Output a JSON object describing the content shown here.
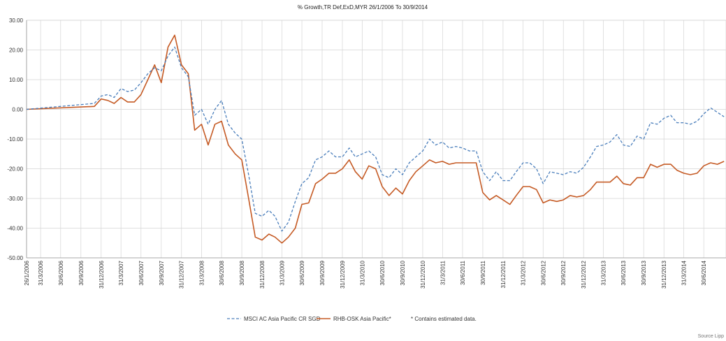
{
  "chart_data": {
    "type": "line",
    "title": "% Growth,TR Def,ExD,MYR 26/1/2006 To 30/9/2014",
    "xlabel": "",
    "ylabel": "",
    "ylim": [
      -50,
      30
    ],
    "yticks": [
      30,
      20,
      10,
      0,
      -10,
      -20,
      -30,
      -40,
      -50
    ],
    "ytick_labels": [
      "30.00",
      "20.00",
      "10.00",
      "0.00",
      "-10.00",
      "-20.00",
      "-30.00",
      "-40.00",
      "-50.00"
    ],
    "xlim": [
      "2006-01-26",
      "2014-09-30"
    ],
    "xticks": [
      "2006-01-26",
      "2006-03-31",
      "2006-06-30",
      "2006-09-30",
      "2006-12-31",
      "2007-03-31",
      "2007-06-30",
      "2007-09-30",
      "2007-12-31",
      "2008-03-31",
      "2008-06-30",
      "2008-09-30",
      "2008-12-31",
      "2009-03-31",
      "2009-06-30",
      "2009-09-30",
      "2009-12-31",
      "2010-03-31",
      "2010-06-30",
      "2010-09-30",
      "2010-12-31",
      "2011-03-31",
      "2011-06-30",
      "2011-09-30",
      "2011-12-31",
      "2012-03-31",
      "2012-06-30",
      "2012-09-30",
      "2012-12-31",
      "2013-03-31",
      "2013-06-30",
      "2013-09-30",
      "2013-12-31",
      "2014-03-31",
      "2014-06-30"
    ],
    "xtick_labels": [
      "26/1/2006",
      "31/3/2006",
      "30/6/2006",
      "30/9/2006",
      "31/12/2006",
      "31/3/2007",
      "30/6/2007",
      "30/9/2007",
      "31/12/2007",
      "31/3/2008",
      "30/6/2008",
      "30/9/2008",
      "31/12/2008",
      "31/3/2009",
      "30/6/2009",
      "30/9/2009",
      "31/12/2009",
      "31/3/2010",
      "30/6/2010",
      "30/9/2010",
      "31/12/2010",
      "31/3/2011",
      "30/6/2011",
      "30/9/2011",
      "31/12/2011",
      "31/3/2012",
      "30/6/2012",
      "30/9/2012",
      "31/12/2012",
      "31/3/2013",
      "30/6/2013",
      "30/9/2013",
      "31/12/2013",
      "31/3/2014",
      "30/6/2014"
    ],
    "grid": true,
    "legend_position": "bottom-center",
    "series": [
      {
        "name": "MSCI AC Asia Pacific CR SGD",
        "color": "#4a7ebb",
        "dash": true,
        "points": [
          [
            "2006-01-26",
            0
          ],
          [
            "2006-11-30",
            2
          ],
          [
            "2006-12-31",
            4.5
          ],
          [
            "2007-01-31",
            5
          ],
          [
            "2007-02-28",
            4
          ],
          [
            "2007-03-31",
            7
          ],
          [
            "2007-04-30",
            6
          ],
          [
            "2007-05-31",
            6.5
          ],
          [
            "2007-06-30",
            9
          ],
          [
            "2007-07-31",
            12
          ],
          [
            "2007-08-31",
            14
          ],
          [
            "2007-09-30",
            13
          ],
          [
            "2007-10-31",
            18
          ],
          [
            "2007-11-30",
            21
          ],
          [
            "2007-12-31",
            14
          ],
          [
            "2008-01-31",
            11
          ],
          [
            "2008-02-29",
            -2
          ],
          [
            "2008-03-31",
            0
          ],
          [
            "2008-04-30",
            -5
          ],
          [
            "2008-05-31",
            0
          ],
          [
            "2008-06-30",
            3
          ],
          [
            "2008-07-31",
            -5
          ],
          [
            "2008-08-31",
            -8
          ],
          [
            "2008-09-30",
            -10
          ],
          [
            "2008-10-31",
            -22
          ],
          [
            "2008-11-30",
            -35
          ],
          [
            "2008-12-31",
            -36
          ],
          [
            "2009-01-31",
            -34
          ],
          [
            "2009-02-28",
            -36
          ],
          [
            "2009-03-31",
            -41
          ],
          [
            "2009-04-30",
            -38
          ],
          [
            "2009-05-31",
            -31
          ],
          [
            "2009-06-30",
            -25
          ],
          [
            "2009-07-31",
            -23
          ],
          [
            "2009-08-31",
            -17
          ],
          [
            "2009-09-30",
            -16
          ],
          [
            "2009-10-31",
            -14
          ],
          [
            "2009-11-30",
            -16
          ],
          [
            "2009-12-31",
            -16
          ],
          [
            "2010-01-31",
            -13
          ],
          [
            "2010-02-28",
            -16
          ],
          [
            "2010-03-31",
            -15
          ],
          [
            "2010-04-30",
            -14
          ],
          [
            "2010-05-31",
            -16
          ],
          [
            "2010-06-30",
            -22
          ],
          [
            "2010-07-31",
            -23
          ],
          [
            "2010-08-31",
            -20
          ],
          [
            "2010-09-30",
            -22
          ],
          [
            "2010-10-31",
            -18
          ],
          [
            "2010-11-30",
            -16
          ],
          [
            "2010-12-31",
            -14
          ],
          [
            "2011-01-31",
            -10
          ],
          [
            "2011-02-28",
            -12
          ],
          [
            "2011-03-31",
            -11
          ],
          [
            "2011-04-30",
            -13
          ],
          [
            "2011-05-31",
            -12.5
          ],
          [
            "2011-06-30",
            -13
          ],
          [
            "2011-07-31",
            -14
          ],
          [
            "2011-08-31",
            -14
          ],
          [
            "2011-09-30",
            -21
          ],
          [
            "2011-10-31",
            -24
          ],
          [
            "2011-11-30",
            -21
          ],
          [
            "2011-12-31",
            -24
          ],
          [
            "2012-01-31",
            -24
          ],
          [
            "2012-02-29",
            -21
          ],
          [
            "2012-03-31",
            -18
          ],
          [
            "2012-04-30",
            -18
          ],
          [
            "2012-05-31",
            -20
          ],
          [
            "2012-06-30",
            -25
          ],
          [
            "2012-07-31",
            -21
          ],
          [
            "2012-08-31",
            -21.5
          ],
          [
            "2012-09-30",
            -22
          ],
          [
            "2012-10-31",
            -21
          ],
          [
            "2012-11-30",
            -21.5
          ],
          [
            "2012-12-31",
            -19.5
          ],
          [
            "2013-01-31",
            -16
          ],
          [
            "2013-02-28",
            -12.5
          ],
          [
            "2013-03-31",
            -12
          ],
          [
            "2013-04-30",
            -11
          ],
          [
            "2013-05-31",
            -8.5
          ],
          [
            "2013-06-30",
            -12
          ],
          [
            "2013-07-31",
            -12.5
          ],
          [
            "2013-08-31",
            -9
          ],
          [
            "2013-09-30",
            -10
          ],
          [
            "2013-10-31",
            -4.5
          ],
          [
            "2013-11-30",
            -5
          ],
          [
            "2013-12-31",
            -3
          ],
          [
            "2014-01-31",
            -2
          ],
          [
            "2014-02-28",
            -4.5
          ],
          [
            "2014-03-31",
            -4.5
          ],
          [
            "2014-04-30",
            -5
          ],
          [
            "2014-05-31",
            -4
          ],
          [
            "2014-06-30",
            -1.5
          ],
          [
            "2014-07-31",
            0.5
          ],
          [
            "2014-08-31",
            -1
          ],
          [
            "2014-09-30",
            -2.5
          ]
        ]
      },
      {
        "name": "RHB-OSK Asia Pacific*",
        "color": "#c55a24",
        "dash": false,
        "points": [
          [
            "2006-01-26",
            0
          ],
          [
            "2006-11-30",
            1
          ],
          [
            "2006-12-31",
            3.5
          ],
          [
            "2007-01-31",
            3
          ],
          [
            "2007-02-28",
            2
          ],
          [
            "2007-03-31",
            4
          ],
          [
            "2007-04-30",
            2.5
          ],
          [
            "2007-05-31",
            2.5
          ],
          [
            "2007-06-30",
            5
          ],
          [
            "2007-07-31",
            10
          ],
          [
            "2007-08-31",
            15
          ],
          [
            "2007-09-30",
            9
          ],
          [
            "2007-10-31",
            21
          ],
          [
            "2007-11-30",
            25
          ],
          [
            "2007-12-31",
            15
          ],
          [
            "2008-01-31",
            12
          ],
          [
            "2008-02-29",
            -7
          ],
          [
            "2008-03-31",
            -5
          ],
          [
            "2008-04-30",
            -12
          ],
          [
            "2008-05-31",
            -5
          ],
          [
            "2008-06-30",
            -4
          ],
          [
            "2008-07-31",
            -12
          ],
          [
            "2008-08-31",
            -15
          ],
          [
            "2008-09-30",
            -17
          ],
          [
            "2008-10-31",
            -30
          ],
          [
            "2008-11-30",
            -43
          ],
          [
            "2008-12-31",
            -44
          ],
          [
            "2009-01-31",
            -42
          ],
          [
            "2009-02-28",
            -43
          ],
          [
            "2009-03-31",
            -45
          ],
          [
            "2009-04-30",
            -43
          ],
          [
            "2009-05-31",
            -40
          ],
          [
            "2009-06-30",
            -32
          ],
          [
            "2009-07-31",
            -31.5
          ],
          [
            "2009-08-31",
            -25
          ],
          [
            "2009-09-30",
            -23.5
          ],
          [
            "2009-10-31",
            -21.5
          ],
          [
            "2009-11-30",
            -21.5
          ],
          [
            "2009-12-31",
            -20
          ],
          [
            "2010-01-31",
            -17
          ],
          [
            "2010-02-28",
            -21
          ],
          [
            "2010-03-31",
            -23.5
          ],
          [
            "2010-04-30",
            -19
          ],
          [
            "2010-05-31",
            -20
          ],
          [
            "2010-06-30",
            -26
          ],
          [
            "2010-07-31",
            -29
          ],
          [
            "2010-08-31",
            -26.5
          ],
          [
            "2010-09-30",
            -28.5
          ],
          [
            "2010-10-31",
            -24
          ],
          [
            "2010-11-30",
            -21
          ],
          [
            "2010-12-31",
            -19
          ],
          [
            "2011-01-31",
            -17
          ],
          [
            "2011-02-28",
            -18
          ],
          [
            "2011-03-31",
            -17.5
          ],
          [
            "2011-04-30",
            -18.5
          ],
          [
            "2011-05-31",
            -18
          ],
          [
            "2011-06-30",
            -18
          ],
          [
            "2011-07-31",
            -18
          ],
          [
            "2011-08-31",
            -18
          ],
          [
            "2011-09-30",
            -28
          ],
          [
            "2011-10-31",
            -30.5
          ],
          [
            "2011-11-30",
            -29
          ],
          [
            "2011-12-31",
            -30.5
          ],
          [
            "2012-01-31",
            -32
          ],
          [
            "2012-02-29",
            -29
          ],
          [
            "2012-03-31",
            -26
          ],
          [
            "2012-04-30",
            -26
          ],
          [
            "2012-05-31",
            -27
          ],
          [
            "2012-06-30",
            -31.5
          ],
          [
            "2012-07-31",
            -30.5
          ],
          [
            "2012-08-31",
            -31
          ],
          [
            "2012-09-30",
            -30.5
          ],
          [
            "2012-10-31",
            -29
          ],
          [
            "2012-11-30",
            -29.5
          ],
          [
            "2012-12-31",
            -29
          ],
          [
            "2013-01-31",
            -27
          ],
          [
            "2013-02-28",
            -24.5
          ],
          [
            "2013-03-31",
            -24.5
          ],
          [
            "2013-04-30",
            -24.5
          ],
          [
            "2013-05-31",
            -22.5
          ],
          [
            "2013-06-30",
            -25
          ],
          [
            "2013-07-31",
            -25.5
          ],
          [
            "2013-08-31",
            -23
          ],
          [
            "2013-09-30",
            -23
          ],
          [
            "2013-10-31",
            -18.5
          ],
          [
            "2013-11-30",
            -19.5
          ],
          [
            "2013-12-31",
            -18.5
          ],
          [
            "2014-01-31",
            -18.5
          ],
          [
            "2014-02-28",
            -20.5
          ],
          [
            "2014-03-31",
            -21.5
          ],
          [
            "2014-04-30",
            -22
          ],
          [
            "2014-05-31",
            -21.5
          ],
          [
            "2014-06-30",
            -19
          ],
          [
            "2014-07-31",
            -18
          ],
          [
            "2014-08-31",
            -18.5
          ],
          [
            "2014-09-30",
            -17.5
          ]
        ]
      }
    ],
    "legend_note": "* Contains estimated data.",
    "source": "Source Lipp"
  }
}
